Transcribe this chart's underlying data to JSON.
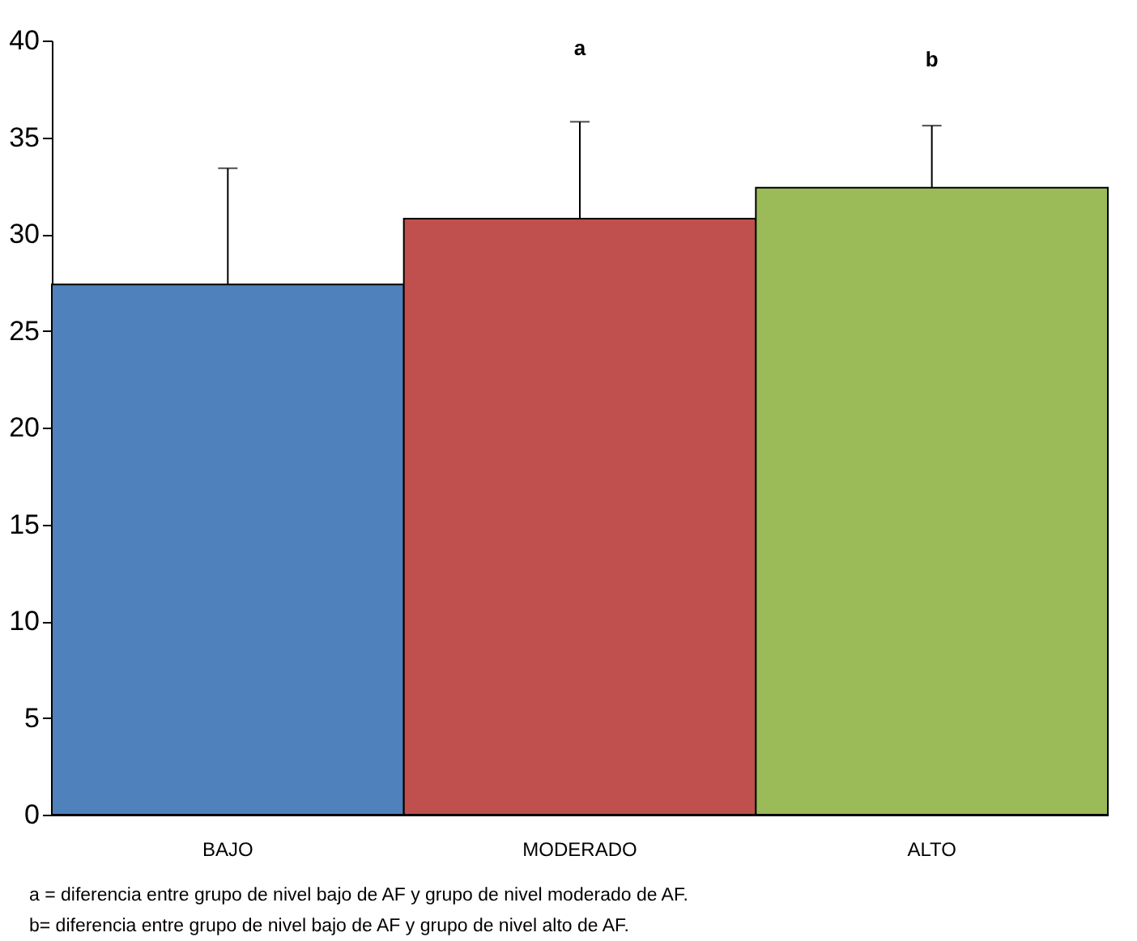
{
  "chart_data": {
    "type": "bar",
    "categories": [
      "BAJO",
      "MODERADO",
      "ALTO"
    ],
    "values": [
      27.4,
      30.8,
      32.4
    ],
    "colors": [
      "#4f81bd",
      "#c0504d",
      "#9bbb59"
    ],
    "errors": [
      [
        27.4,
        33.4
      ],
      [
        30.8,
        35.8
      ],
      [
        32.4,
        35.6
      ]
    ],
    "ylim": [
      0,
      40
    ],
    "yticks": [
      0,
      5,
      10,
      15,
      20,
      25,
      30,
      35,
      40
    ],
    "grid": false,
    "legend": false,
    "annotations": [
      "a",
      "b",
      "a = diferencia entre grupo de nivel bajo de AF y grupo de nivel moderado de AF.",
      "b= diferencia entre grupo de nivel bajo de AF y grupo de nivel alto de AF."
    ]
  }
}
